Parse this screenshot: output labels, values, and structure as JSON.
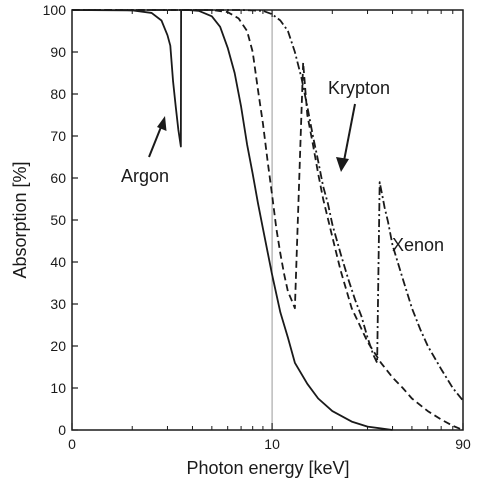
{
  "chart_data": {
    "type": "line",
    "xlabel": "Photon energy [keV]",
    "ylabel": "Absorption [%]",
    "x_tick_labels": [
      "0",
      "10",
      "90"
    ],
    "y_tick_labels": [
      "0",
      "10",
      "20",
      "30",
      "40",
      "50",
      "60",
      "70",
      "80",
      "90",
      "100"
    ],
    "x_scale": "log",
    "xlim": [
      1,
      90
    ],
    "ylim": [
      0,
      100
    ],
    "grid": false,
    "reference_line_x": 10,
    "series": [
      {
        "name": "Argon",
        "style": "solid",
        "points": [
          [
            1.0,
            100
          ],
          [
            2.0,
            99.9
          ],
          [
            2.5,
            99.3
          ],
          [
            2.8,
            97.5
          ],
          [
            3.0,
            94
          ],
          [
            3.1,
            91.5
          ],
          [
            3.2,
            83
          ],
          [
            3.3,
            77
          ],
          [
            3.4,
            71.5
          ],
          [
            3.5,
            67.5
          ],
          [
            3.51,
            100
          ],
          [
            3.8,
            100
          ],
          [
            4.3,
            99.8
          ],
          [
            5.0,
            98.5
          ],
          [
            5.5,
            96
          ],
          [
            6.0,
            91
          ],
          [
            6.5,
            85
          ],
          [
            7.0,
            77
          ],
          [
            7.5,
            68
          ],
          [
            8.0,
            61
          ],
          [
            8.5,
            54
          ],
          [
            9.0,
            48
          ],
          [
            10.0,
            37
          ],
          [
            11.0,
            28
          ],
          [
            12.0,
            22
          ],
          [
            13.0,
            16
          ],
          [
            15.0,
            11
          ],
          [
            17.0,
            7.5
          ],
          [
            20.0,
            4.5
          ],
          [
            25.0,
            2
          ],
          [
            30.0,
            0.8
          ],
          [
            40.0,
            0
          ]
        ]
      },
      {
        "name": "Krypton",
        "style": "dashed",
        "points": [
          [
            1.0,
            100
          ],
          [
            5.0,
            100
          ],
          [
            6.0,
            99.5
          ],
          [
            6.8,
            98
          ],
          [
            7.5,
            95
          ],
          [
            8.0,
            90
          ],
          [
            8.5,
            81
          ],
          [
            9.0,
            73
          ],
          [
            9.5,
            64
          ],
          [
            10.0,
            56
          ],
          [
            10.5,
            48
          ],
          [
            11.0,
            42
          ],
          [
            11.5,
            37
          ],
          [
            12.0,
            33
          ],
          [
            12.5,
            31
          ],
          [
            13.0,
            29
          ],
          [
            14.3,
            87.5
          ],
          [
            15.0,
            75
          ],
          [
            16.0,
            68
          ],
          [
            17.0,
            61
          ],
          [
            18.0,
            55
          ],
          [
            20.0,
            46
          ],
          [
            22.0,
            38
          ],
          [
            25.0,
            29
          ],
          [
            30.0,
            21
          ],
          [
            35.0,
            16
          ],
          [
            40.0,
            12.5
          ],
          [
            45.0,
            10
          ],
          [
            50.0,
            7.5
          ],
          [
            60.0,
            4.5
          ],
          [
            70.0,
            2.5
          ],
          [
            80.0,
            1
          ],
          [
            90.0,
            0
          ]
        ]
      },
      {
        "name": "Xenon",
        "style": "dashdot",
        "points": [
          [
            1.0,
            100
          ],
          [
            7.0,
            100
          ],
          [
            9.0,
            99.8
          ],
          [
            10.0,
            99
          ],
          [
            11.0,
            97.5
          ],
          [
            12.0,
            95
          ],
          [
            13.0,
            90
          ],
          [
            14.0,
            84
          ],
          [
            15.0,
            77
          ],
          [
            16.0,
            70
          ],
          [
            17.0,
            64
          ],
          [
            18.0,
            58
          ],
          [
            19.0,
            54
          ],
          [
            20.0,
            49
          ],
          [
            22.0,
            42
          ],
          [
            24.0,
            36
          ],
          [
            26.0,
            31
          ],
          [
            28.0,
            27
          ],
          [
            30.0,
            22
          ],
          [
            32.0,
            18
          ],
          [
            33.5,
            16
          ],
          [
            34.5,
            59
          ],
          [
            35.5,
            56
          ],
          [
            36.5,
            53
          ],
          [
            38.0,
            49.5
          ],
          [
            40.0,
            44
          ],
          [
            45.0,
            36
          ],
          [
            50.0,
            29
          ],
          [
            55.0,
            24
          ],
          [
            60.0,
            20
          ],
          [
            70.0,
            14.5
          ],
          [
            80.0,
            10
          ],
          [
            90.0,
            7
          ]
        ]
      }
    ]
  },
  "annotations": [
    {
      "label": "Argon",
      "target_series": "Argon"
    },
    {
      "label": "Krypton",
      "target_series": "Krypton"
    },
    {
      "label": "Xenon",
      "target_series": "Xenon"
    }
  ]
}
